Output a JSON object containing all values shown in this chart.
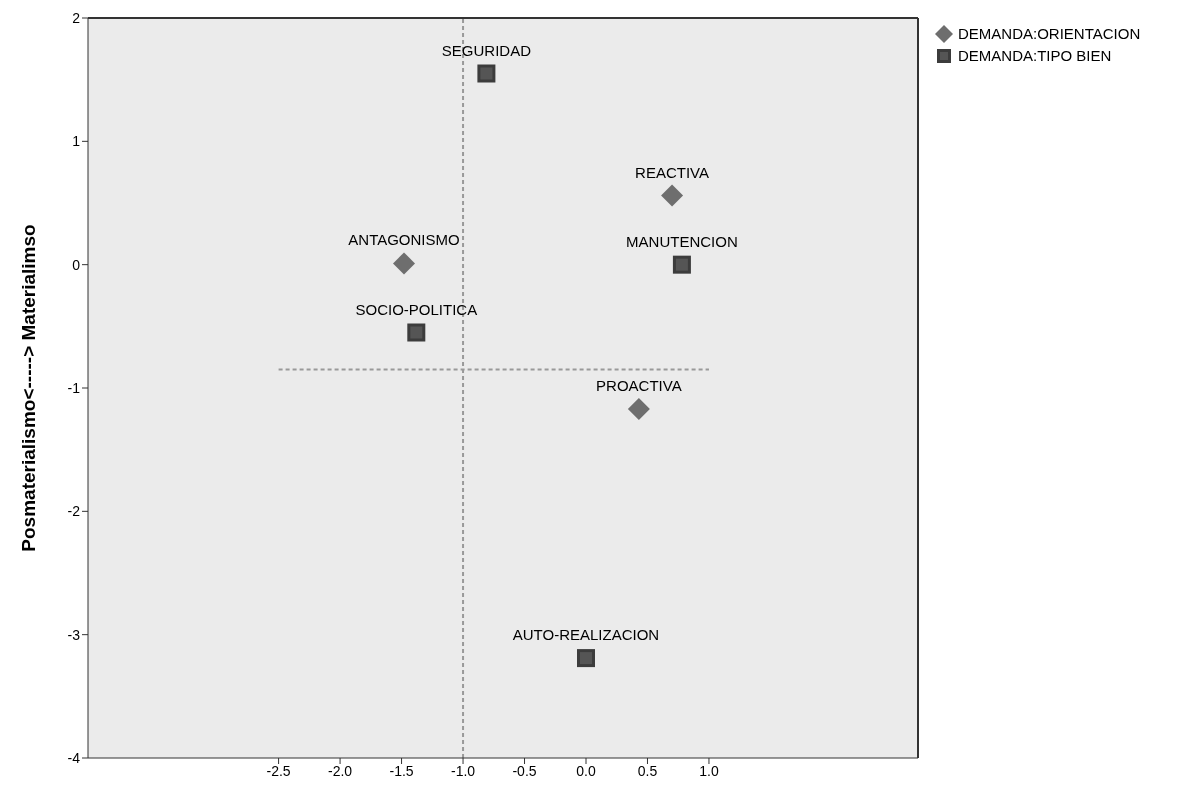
{
  "chart_data": {
    "type": "scatter",
    "ylabel": "Posmaterialismo<-----> Materialimso",
    "xlim": [
      -4.05,
      2.7
    ],
    "ylim": [
      -4,
      2
    ],
    "xticks": [
      -2.5,
      {
        "value": -2,
        "label": "-2.0"
      },
      -1.5,
      {
        "value": -1,
        "label": "-1.0"
      },
      -0.5,
      {
        "value": 0,
        "label": "0.0"
      },
      0.5,
      {
        "value": 1,
        "label": "1.0"
      }
    ],
    "yticks": [
      -4,
      -3,
      -2,
      -1,
      0,
      1,
      2
    ],
    "grid": false,
    "legend": "top right",
    "series": [
      {
        "name": "DEMANDA:ORIENTACION",
        "color": "#6e6e6e",
        "marker": "diamond",
        "x": [
          0.7,
          -1.48,
          0.43
        ],
        "values": [
          0.56,
          0.01,
          -1.17
        ]
      },
      {
        "name": "DEMANDA:TIPO BIEN",
        "color": "#3c3c3c",
        "marker": "square",
        "x": [
          -0.81,
          0.78,
          -1.38,
          0.0
        ],
        "values": [
          1.55,
          0.0,
          -0.55,
          -3.19
        ]
      }
    ],
    "ref_lines": [
      {
        "axis": "x",
        "value": -1.0,
        "color": "#999999",
        "line_style": "dashed"
      },
      {
        "axis": "y",
        "value": -0.85,
        "color": "#999999",
        "line_style": "dashed"
      }
    ],
    "annotations": [
      {
        "text": "SEGURIDAD",
        "x": -0.81,
        "y": 1.55
      },
      {
        "text": "REACTIVA",
        "x": 0.7,
        "y": 0.56
      },
      {
        "text": "ANTAGONISMO",
        "x": -1.48,
        "y": 0.01
      },
      {
        "text": "MANUTENCION",
        "x": 0.78,
        "y": 0.0
      },
      {
        "text": "SOCIO-POLITICA",
        "x": -1.38,
        "y": -0.55
      },
      {
        "text": "PROACTIVA",
        "x": 0.43,
        "y": -1.17
      },
      {
        "text": "AUTO-REALIZACION",
        "x": 0.0,
        "y": -3.19
      }
    ]
  }
}
